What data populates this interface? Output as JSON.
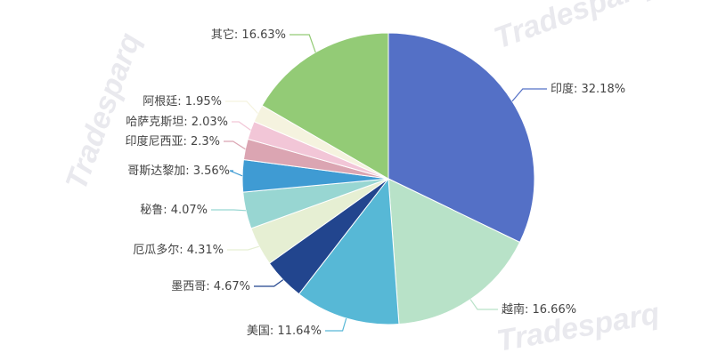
{
  "chart_data": {
    "type": "pie",
    "title": "",
    "legend": "none",
    "slices": [
      {
        "label": "印度",
        "value": 32.18,
        "display": "印度: 32.18%",
        "color": "#5470c6"
      },
      {
        "label": "越南",
        "value": 16.66,
        "display": "越南: 16.66%",
        "color": "#b8e2c8"
      },
      {
        "label": "美国",
        "value": 11.64,
        "display": "美国: 11.64%",
        "color": "#57b8d6"
      },
      {
        "label": "墨西哥",
        "value": 4.67,
        "display": "墨西哥: 4.67%",
        "color": "#22458e"
      },
      {
        "label": "厄瓜多尔",
        "value": 4.31,
        "display": "厄瓜多尔: 4.31%",
        "color": "#e6efd3"
      },
      {
        "label": "秘鲁",
        "value": 4.07,
        "display": "秘鲁: 4.07%",
        "color": "#98d6d2"
      },
      {
        "label": "哥斯达黎加",
        "value": 3.56,
        "display": "哥斯达黎加: 3.56%",
        "color": "#3f9bd3"
      },
      {
        "label": "印度尼西亚",
        "value": 2.3,
        "display": "印度尼西亚: 2.3%",
        "color": "#dba5b2"
      },
      {
        "label": "哈萨克斯坦",
        "value": 2.03,
        "display": "哈萨克斯坦: 2.03%",
        "color": "#f2c6d7"
      },
      {
        "label": "阿根廷",
        "value": 1.95,
        "display": "阿根廷: 1.95%",
        "color": "#f5f3df"
      },
      {
        "label": "其它",
        "value": 16.63,
        "display": "其它: 16.63%",
        "color": "#93cb76"
      }
    ]
  },
  "watermark": {
    "text": "Tradesparq",
    "color": "#e9e9ee"
  }
}
